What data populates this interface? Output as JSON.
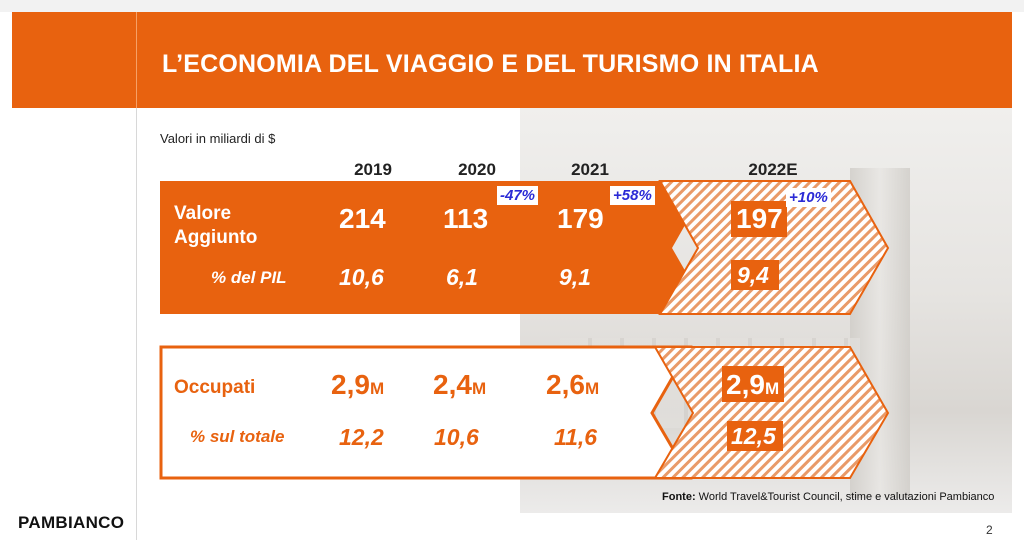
{
  "title": "L’ECONOMIA DEL VIAGGIO E DEL TURISMO IN ITALIA",
  "unit_note": "Valori in miliardi di $",
  "years": [
    "2019",
    "2020",
    "2021",
    "2022E"
  ],
  "valore": {
    "label_line1": "Valore",
    "label_line2": "Aggiunto",
    "values": [
      "214",
      "113",
      "179",
      "197"
    ],
    "changes": [
      "-47%",
      "+58%",
      "+10%"
    ],
    "pil_label": "% del PIL",
    "pil_values": [
      "10,6",
      "6,1",
      "9,1",
      "9,4"
    ]
  },
  "occupati": {
    "label": "Occupati",
    "values": [
      "2,9",
      "2,4",
      "2,6",
      "2,9"
    ],
    "unit_suffix": "M",
    "share_label": "% sul totale",
    "share_values": [
      "12,2",
      "10,6",
      "11,6",
      "12,5"
    ]
  },
  "source_label": "Fonte:",
  "source_text": "World Travel&Tourist Council, stime e valutazioni Pambianco",
  "logo": "PAMBIANCO",
  "page_number": "2",
  "colors": {
    "accent": "#e8620f",
    "badge_text": "#2b2bd6"
  }
}
